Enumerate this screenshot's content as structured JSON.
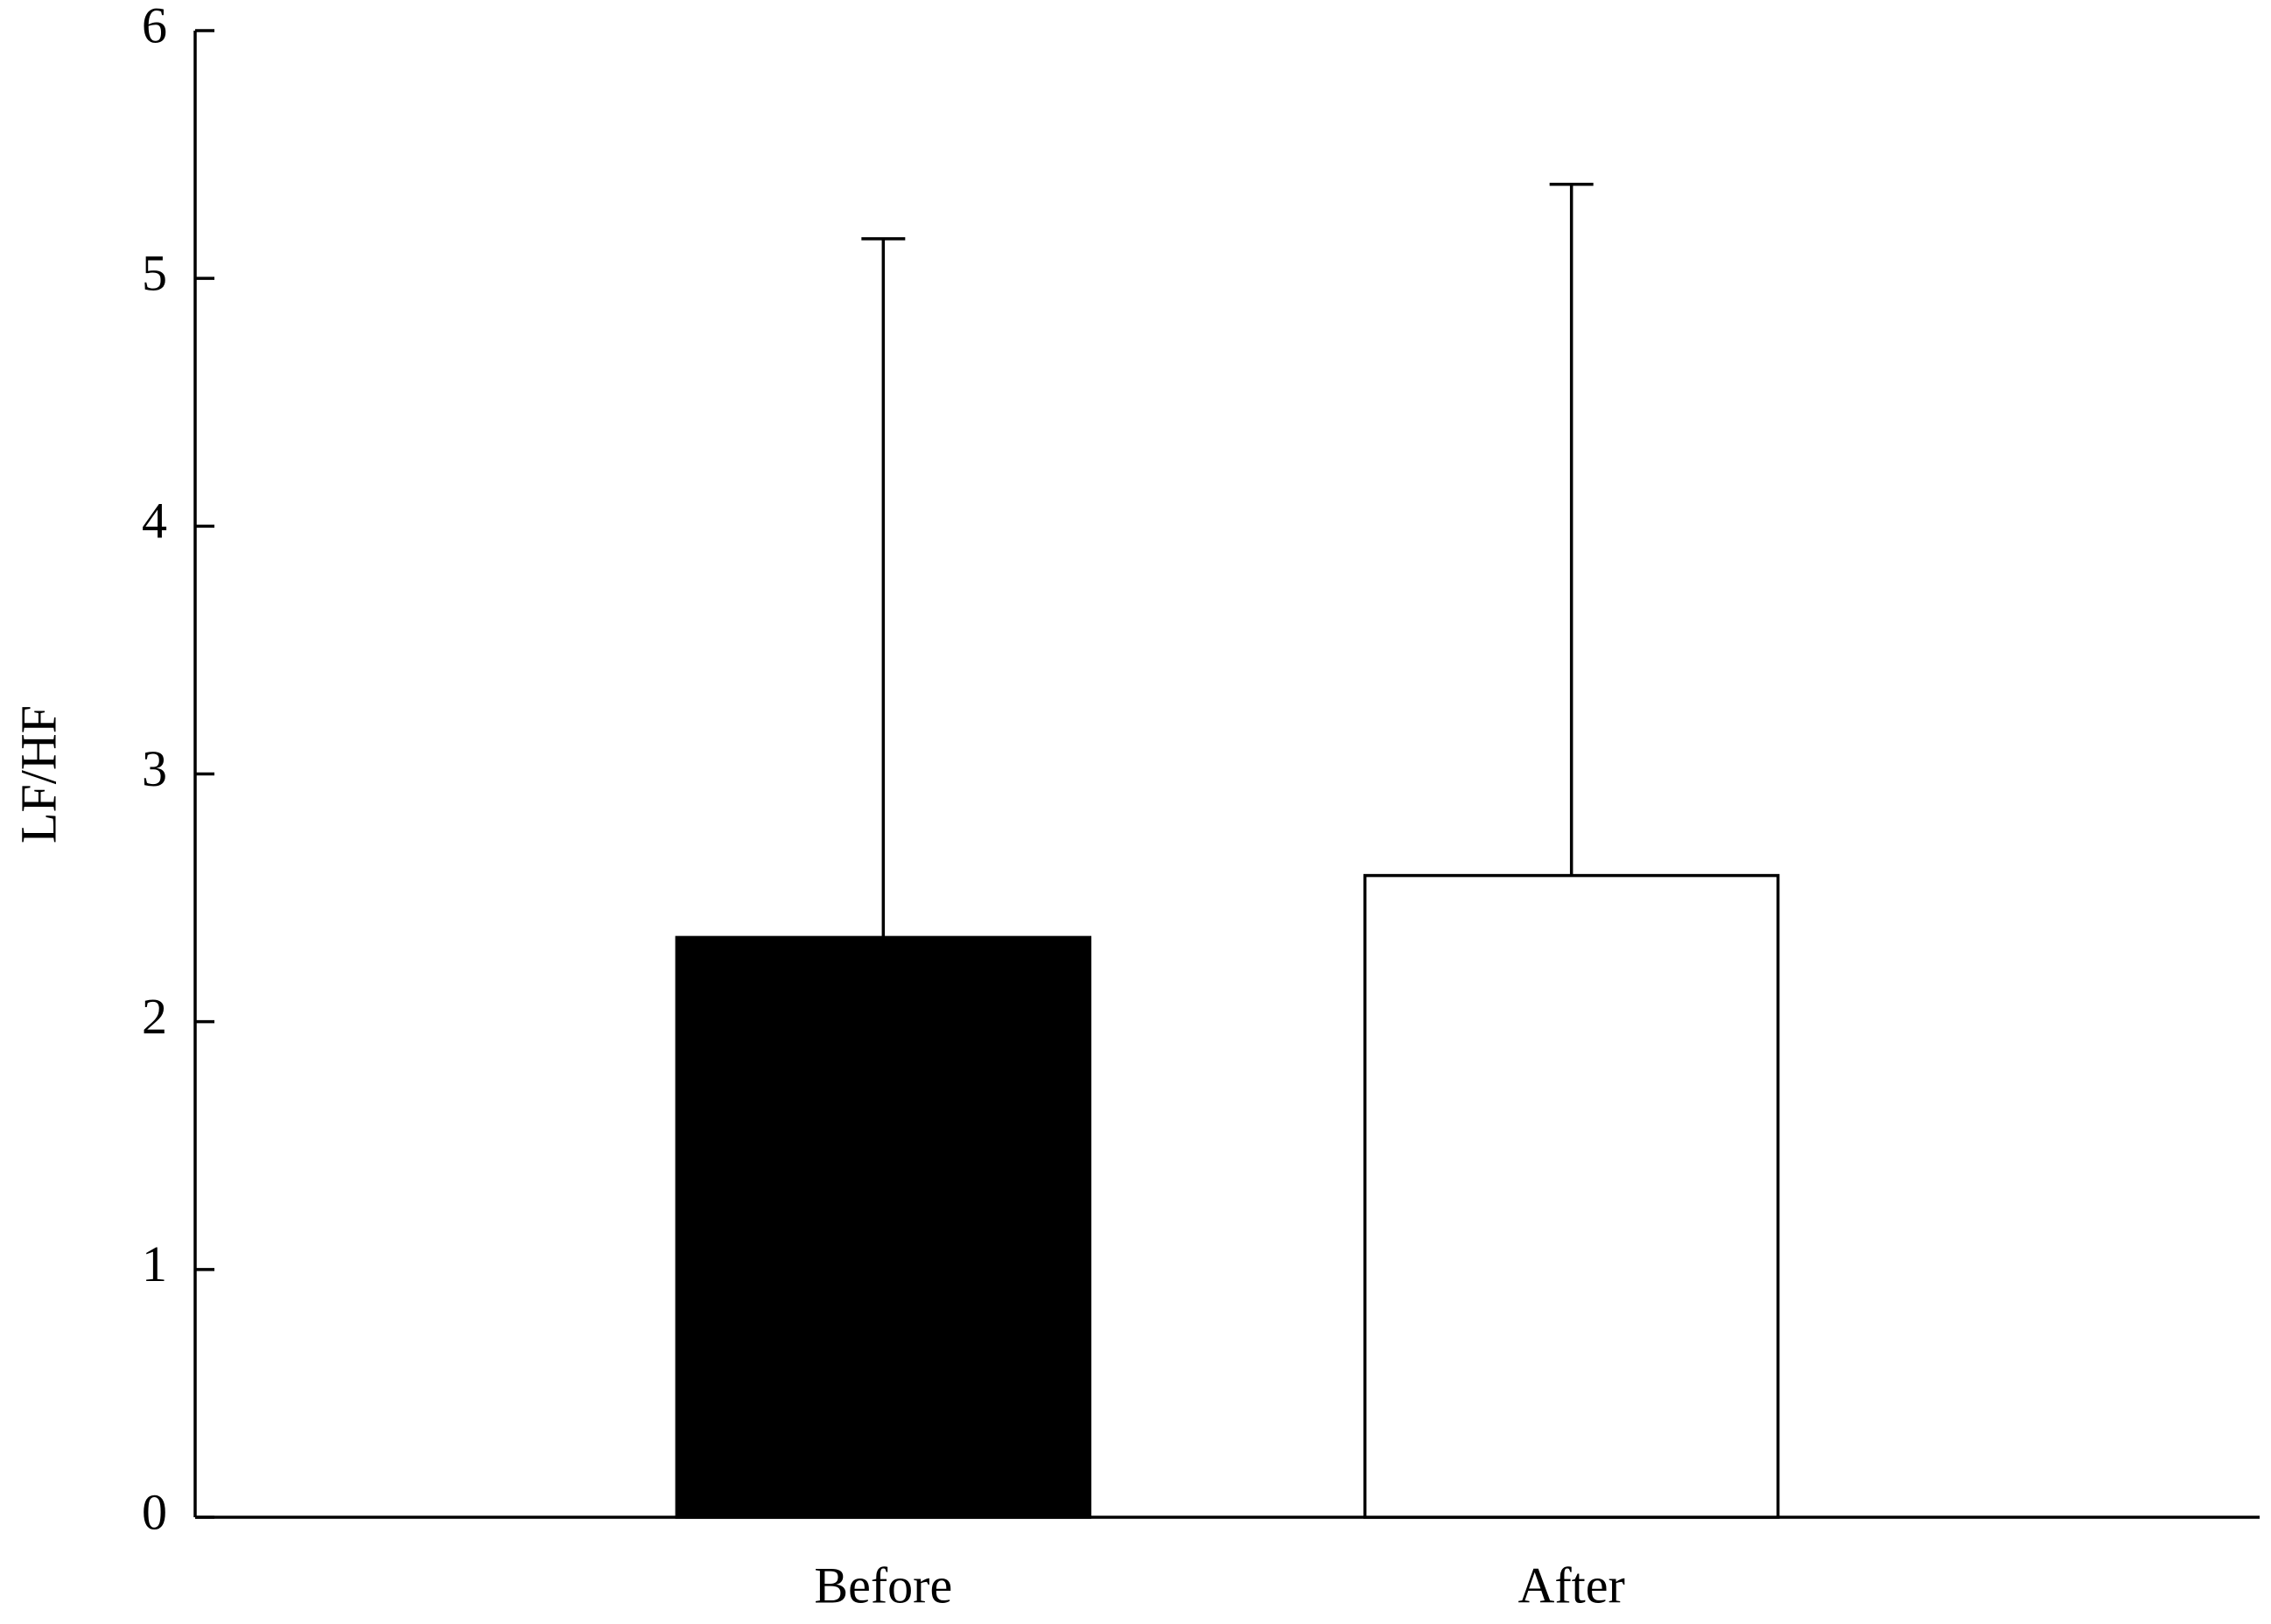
{
  "chart_data": {
    "type": "bar",
    "y_label": "LF/HF",
    "categories": [
      "Before",
      "After"
    ],
    "values": [
      2.34,
      2.59
    ],
    "errors": [
      2.82,
      2.79
    ],
    "colors": [
      "#000000",
      "#ffffff"
    ],
    "edge_color": "#000000",
    "ylim": [
      0,
      6
    ],
    "yticks": [
      0,
      1,
      2,
      3,
      4,
      5,
      6
    ],
    "grid": false
  }
}
